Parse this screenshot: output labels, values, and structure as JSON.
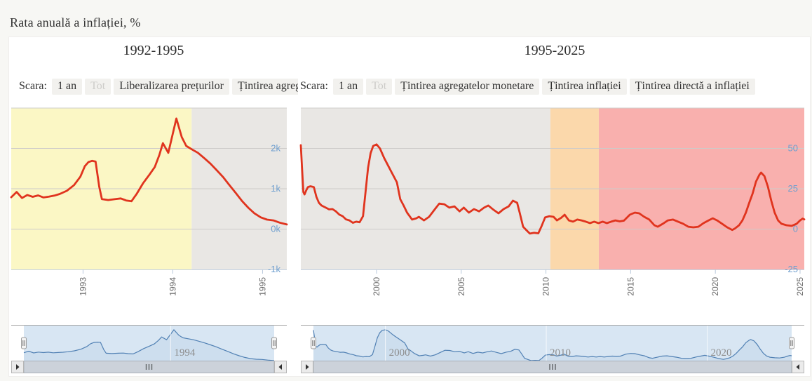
{
  "page": {
    "title": "Rata anuală a inflației, %"
  },
  "chart_data": [
    {
      "type": "line",
      "title": "1992-1995",
      "xlabel": "",
      "ylabel": "",
      "legend": false,
      "grid": true,
      "xlim": [
        1992.2,
        1995.27
      ],
      "ylim": [
        -1000,
        3000
      ],
      "line_color": "#e0341e",
      "yticks": [
        {
          "value": 2000,
          "label": "2k"
        },
        {
          "value": 1000,
          "label": "1k"
        },
        {
          "value": 0,
          "label": "0k"
        },
        {
          "value": -1000,
          "label": "-1k"
        }
      ],
      "xticks": [
        {
          "value": 1993,
          "label": "1993"
        },
        {
          "value": 1994,
          "label": "1994"
        },
        {
          "value": 1995,
          "label": "1995"
        }
      ],
      "plot_bands": [
        {
          "from": 1992.2,
          "to": 1994.21,
          "color": "#fbf7c5"
        },
        {
          "from": 1994.21,
          "to": 1995.27,
          "color": "#e9e7e4"
        }
      ],
      "range_selector": {
        "label": "Scara:",
        "buttons": [
          {
            "label": "1 an",
            "enabled": true
          },
          {
            "label": "Tot",
            "enabled": false
          },
          {
            "label": "Liberalizarea prețurilor",
            "enabled": true
          },
          {
            "label": "Țintirea agregatelor monetare",
            "enabled": true
          }
        ]
      },
      "navigator": {
        "xticks": [
          {
            "value": 1994,
            "label": "1994"
          }
        ]
      },
      "points": [
        [
          1992.2,
          790
        ],
        [
          1992.26,
          920
        ],
        [
          1992.32,
          770
        ],
        [
          1992.38,
          845
        ],
        [
          1992.44,
          800
        ],
        [
          1992.5,
          835
        ],
        [
          1992.56,
          785
        ],
        [
          1992.62,
          805
        ],
        [
          1992.68,
          830
        ],
        [
          1992.74,
          870
        ],
        [
          1992.82,
          950
        ],
        [
          1992.9,
          1090
        ],
        [
          1992.97,
          1300
        ],
        [
          1993.02,
          1560
        ],
        [
          1993.06,
          1660
        ],
        [
          1993.1,
          1690
        ],
        [
          1993.14,
          1675
        ],
        [
          1993.18,
          1050
        ],
        [
          1993.21,
          745
        ],
        [
          1993.28,
          720
        ],
        [
          1993.36,
          745
        ],
        [
          1993.42,
          760
        ],
        [
          1993.48,
          710
        ],
        [
          1993.54,
          690
        ],
        [
          1993.6,
          880
        ],
        [
          1993.67,
          1140
        ],
        [
          1993.74,
          1350
        ],
        [
          1993.8,
          1540
        ],
        [
          1993.85,
          1835
        ],
        [
          1993.89,
          2130
        ],
        [
          1993.95,
          1890
        ],
        [
          1994.04,
          2740
        ],
        [
          1994.1,
          2280
        ],
        [
          1994.15,
          2060
        ],
        [
          1994.21,
          1980
        ],
        [
          1994.28,
          1890
        ],
        [
          1994.35,
          1760
        ],
        [
          1994.42,
          1620
        ],
        [
          1994.49,
          1460
        ],
        [
          1994.56,
          1290
        ],
        [
          1994.63,
          1090
        ],
        [
          1994.7,
          900
        ],
        [
          1994.77,
          700
        ],
        [
          1994.84,
          530
        ],
        [
          1994.91,
          390
        ],
        [
          1994.98,
          290
        ],
        [
          1995.05,
          235
        ],
        [
          1995.12,
          215
        ],
        [
          1995.19,
          160
        ],
        [
          1995.27,
          115
        ]
      ]
    },
    {
      "type": "line",
      "title": "1995-2025",
      "xlabel": "",
      "ylabel": "",
      "legend": false,
      "grid": true,
      "xlim": [
        1995.53,
        2025.25
      ],
      "ylim": [
        -25,
        75
      ],
      "line_color": "#e0341e",
      "yticks": [
        {
          "value": 50,
          "label": "50"
        },
        {
          "value": 25,
          "label": "25"
        },
        {
          "value": 0,
          "label": "0"
        },
        {
          "value": -25,
          "label": "-25"
        }
      ],
      "xticks": [
        {
          "value": 2000,
          "label": "2000"
        },
        {
          "value": 2005,
          "label": "2005"
        },
        {
          "value": 2010,
          "label": "2010"
        },
        {
          "value": 2015,
          "label": "2015"
        },
        {
          "value": 2020,
          "label": "2020"
        },
        {
          "value": 2025,
          "label": "2025"
        }
      ],
      "plot_bands": [
        {
          "from": 1995.53,
          "to": 2010.26,
          "color": "#e9e7e4"
        },
        {
          "from": 2010.26,
          "to": 2013.12,
          "color": "#fbd8ab"
        },
        {
          "from": 2013.12,
          "to": 2025.25,
          "color": "#f9b0ae"
        }
      ],
      "range_selector": {
        "label": "Scara:",
        "buttons": [
          {
            "label": "1 an",
            "enabled": true
          },
          {
            "label": "Tot",
            "enabled": false
          },
          {
            "label": "Țintirea agregatelor monetare",
            "enabled": true
          },
          {
            "label": "Țintirea inflației",
            "enabled": true
          },
          {
            "label": "Țintirea directă a inflației",
            "enabled": true
          }
        ]
      },
      "navigator": {
        "xticks": [
          {
            "value": 2000,
            "label": "2000"
          },
          {
            "value": 2010,
            "label": "2010"
          },
          {
            "value": 2020,
            "label": "2020"
          }
        ]
      },
      "points": [
        [
          1995.53,
          52
        ],
        [
          1995.6,
          38
        ],
        [
          1995.68,
          23
        ],
        [
          1995.75,
          21.5
        ],
        [
          1995.85,
          24
        ],
        [
          1995.95,
          26
        ],
        [
          1996.1,
          26.5
        ],
        [
          1996.3,
          26
        ],
        [
          1996.45,
          20
        ],
        [
          1996.6,
          16.3
        ],
        [
          1996.75,
          14.6
        ],
        [
          1997.0,
          13.3
        ],
        [
          1997.2,
          12.2
        ],
        [
          1997.4,
          12.4
        ],
        [
          1997.6,
          11
        ],
        [
          1997.8,
          9
        ],
        [
          1998.0,
          8
        ],
        [
          1998.2,
          6
        ],
        [
          1998.4,
          5.4
        ],
        [
          1998.6,
          3.9
        ],
        [
          1998.8,
          4.6
        ],
        [
          1999.0,
          4.2
        ],
        [
          1999.2,
          8
        ],
        [
          1999.35,
          23
        ],
        [
          1999.5,
          38
        ],
        [
          1999.65,
          47
        ],
        [
          1999.8,
          51.5
        ],
        [
          2000.0,
          52.5
        ],
        [
          2000.2,
          50
        ],
        [
          2000.45,
          44
        ],
        [
          2000.6,
          41
        ],
        [
          2000.9,
          35
        ],
        [
          2001.2,
          29
        ],
        [
          2001.4,
          18.5
        ],
        [
          2001.6,
          14.6
        ],
        [
          2001.8,
          10.2
        ],
        [
          2002.1,
          5.9
        ],
        [
          2002.35,
          6.7
        ],
        [
          2002.5,
          7.6
        ],
        [
          2002.8,
          5.4
        ],
        [
          2003.1,
          7.6
        ],
        [
          2003.45,
          12.4
        ],
        [
          2003.7,
          15.8
        ],
        [
          2004.0,
          15.4
        ],
        [
          2004.3,
          13.3
        ],
        [
          2004.6,
          14.1
        ],
        [
          2004.9,
          11
        ],
        [
          2005.15,
          13.3
        ],
        [
          2005.45,
          10.2
        ],
        [
          2005.75,
          12.4
        ],
        [
          2006.05,
          11
        ],
        [
          2006.35,
          13.3
        ],
        [
          2006.6,
          14.6
        ],
        [
          2006.9,
          12
        ],
        [
          2007.2,
          9.8
        ],
        [
          2007.5,
          12.4
        ],
        [
          2007.8,
          14.1
        ],
        [
          2008.05,
          17.6
        ],
        [
          2008.3,
          16.3
        ],
        [
          2008.45,
          10.2
        ],
        [
          2008.65,
          1.5
        ],
        [
          2008.85,
          -0.7
        ],
        [
          2009.05,
          -2.8
        ],
        [
          2009.3,
          -2.3
        ],
        [
          2009.55,
          -2.6
        ],
        [
          2009.75,
          2
        ],
        [
          2009.95,
          7.2
        ],
        [
          2010.2,
          8
        ],
        [
          2010.45,
          7.6
        ],
        [
          2010.65,
          5.4
        ],
        [
          2010.9,
          7
        ],
        [
          2011.1,
          8.9
        ],
        [
          2011.35,
          5.4
        ],
        [
          2011.6,
          4.6
        ],
        [
          2011.85,
          5.9
        ],
        [
          2012.1,
          5.4
        ],
        [
          2012.35,
          4.6
        ],
        [
          2012.6,
          3.7
        ],
        [
          2012.85,
          4.6
        ],
        [
          2013.1,
          3.7
        ],
        [
          2013.35,
          4.6
        ],
        [
          2013.6,
          3.7
        ],
        [
          2013.85,
          4.6
        ],
        [
          2014.1,
          5.4
        ],
        [
          2014.35,
          4.8
        ],
        [
          2014.6,
          5.2
        ],
        [
          2014.95,
          8.9
        ],
        [
          2015.25,
          10.2
        ],
        [
          2015.5,
          9.8
        ],
        [
          2015.8,
          7.6
        ],
        [
          2016.1,
          5.9
        ],
        [
          2016.4,
          2.4
        ],
        [
          2016.6,
          1.5
        ],
        [
          2016.9,
          3.3
        ],
        [
          2017.2,
          5.4
        ],
        [
          2017.5,
          5.9
        ],
        [
          2017.8,
          4.6
        ],
        [
          2018.1,
          3.3
        ],
        [
          2018.4,
          1.5
        ],
        [
          2018.7,
          1.1
        ],
        [
          2019.0,
          1.5
        ],
        [
          2019.3,
          3.7
        ],
        [
          2019.6,
          5.4
        ],
        [
          2019.85,
          6.7
        ],
        [
          2020.1,
          5.4
        ],
        [
          2020.4,
          3.3
        ],
        [
          2020.7,
          1.1
        ],
        [
          2021.0,
          -0.5
        ],
        [
          2021.15,
          0.3
        ],
        [
          2021.4,
          2.4
        ],
        [
          2021.6,
          5.4
        ],
        [
          2021.8,
          10.2
        ],
        [
          2022.0,
          16.3
        ],
        [
          2022.2,
          22
        ],
        [
          2022.4,
          29.4
        ],
        [
          2022.6,
          33.7
        ],
        [
          2022.7,
          35
        ],
        [
          2022.9,
          32.8
        ],
        [
          2023.1,
          26.3
        ],
        [
          2023.3,
          17.6
        ],
        [
          2023.5,
          10.2
        ],
        [
          2023.7,
          5.4
        ],
        [
          2023.9,
          3.3
        ],
        [
          2024.2,
          2.4
        ],
        [
          2024.5,
          2.0
        ],
        [
          2024.8,
          3.3
        ],
        [
          2025.0,
          5.4
        ],
        [
          2025.15,
          6.5
        ],
        [
          2025.25,
          6.0
        ]
      ]
    }
  ],
  "colors": {
    "series_red": "#e0341e",
    "band_yellow": "#fbf7c5",
    "band_gray": "#e9e7e4",
    "band_orange": "#fbd8ab",
    "band_pink": "#f9b0ae",
    "axis_label_blue": "#6f9fcf",
    "navigator_mask": "#d8e6f3",
    "navigator_line": "#5181b4"
  }
}
